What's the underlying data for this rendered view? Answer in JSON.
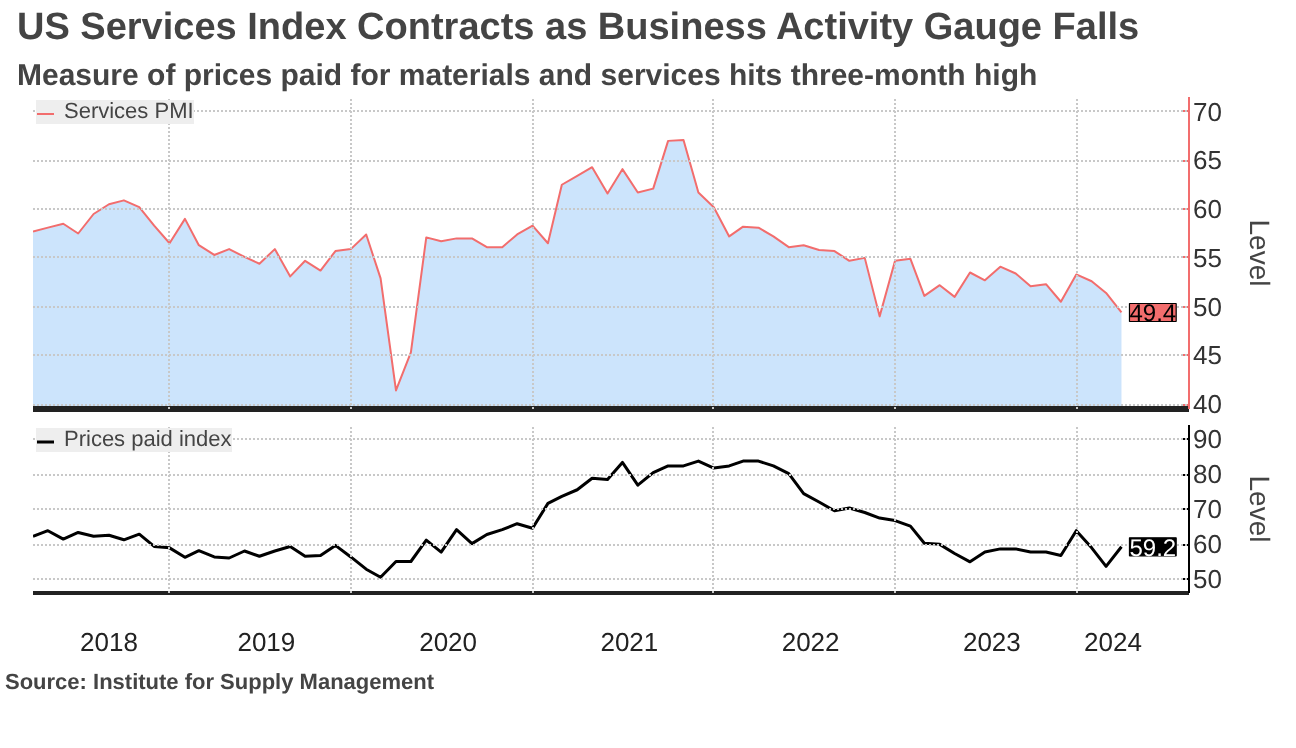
{
  "chart_data": [
    {
      "type": "area",
      "title": "US Services Index Contracts as Business Activity Gauge Falls",
      "subtitle": "Measure of prices paid for materials and services hits three-month high",
      "ylabel": "Level",
      "x": [
        "2018-04",
        "2018-05",
        "2018-06",
        "2018-07",
        "2018-08",
        "2018-09",
        "2018-10",
        "2018-11",
        "2018-12",
        "2019-01",
        "2019-02",
        "2019-03",
        "2019-04",
        "2019-05",
        "2019-06",
        "2019-07",
        "2019-08",
        "2019-09",
        "2019-10",
        "2019-11",
        "2019-12",
        "2020-01",
        "2020-02",
        "2020-03",
        "2020-04",
        "2020-05",
        "2020-06",
        "2020-07",
        "2020-08",
        "2020-09",
        "2020-10",
        "2020-11",
        "2020-12",
        "2021-01",
        "2021-02",
        "2021-03",
        "2021-04",
        "2021-05",
        "2021-06",
        "2021-07",
        "2021-08",
        "2021-09",
        "2021-10",
        "2021-11",
        "2021-12",
        "2022-01",
        "2022-02",
        "2022-03",
        "2022-04",
        "2022-05",
        "2022-06",
        "2022-07",
        "2022-08",
        "2022-09",
        "2022-10",
        "2022-11",
        "2022-12",
        "2023-01",
        "2023-02",
        "2023-03",
        "2023-04",
        "2023-05",
        "2023-06",
        "2023-07",
        "2023-08",
        "2023-09",
        "2023-10",
        "2023-11",
        "2023-12",
        "2024-01",
        "2024-02",
        "2024-03",
        "2024-04"
      ],
      "series": [
        {
          "type": "area",
          "color": "#cce4fc",
          "values": [
            57.7,
            58.1,
            58.5,
            57.5,
            59.5,
            60.5,
            60.9,
            60.2,
            58.3,
            56.5,
            59.0,
            56.3,
            55.3,
            55.9,
            55.1,
            54.4,
            55.9,
            53.1,
            54.7,
            53.7,
            55.7,
            55.9,
            57.4,
            52.9,
            41.4,
            45.3,
            57.1,
            56.7,
            57.0,
            57.0,
            56.1,
            56.1,
            57.4,
            58.3,
            56.5,
            62.5,
            63.4,
            64.3,
            61.6,
            64.1,
            61.7,
            62.1,
            67.0,
            67.1,
            61.7,
            60.2,
            57.2,
            58.2,
            58.1,
            57.2,
            56.1,
            56.3,
            55.8,
            55.7,
            54.7,
            55.0,
            49.0,
            54.7,
            54.9,
            51.1,
            52.2,
            51.0,
            53.5,
            52.7,
            54.1,
            53.4,
            52.1,
            52.3,
            50.5,
            53.3,
            52.6,
            51.4,
            49.4
          ]
        },
        {
          "type": "line",
          "name": "Services PMI",
          "color": "#f26d6d",
          "values": [
            57.7,
            58.1,
            58.5,
            57.5,
            59.5,
            60.5,
            60.9,
            60.2,
            58.3,
            56.5,
            59.0,
            56.3,
            55.3,
            55.9,
            55.1,
            54.4,
            55.9,
            53.1,
            54.7,
            53.7,
            55.7,
            55.9,
            57.4,
            52.9,
            41.4,
            45.3,
            57.1,
            56.7,
            57.0,
            57.0,
            56.1,
            56.1,
            57.4,
            58.3,
            56.5,
            62.5,
            63.4,
            64.3,
            61.6,
            64.1,
            61.7,
            62.1,
            67.0,
            67.1,
            61.7,
            60.2,
            57.2,
            58.2,
            58.1,
            57.2,
            56.1,
            56.3,
            55.8,
            55.7,
            54.7,
            55.0,
            49.0,
            54.7,
            54.9,
            51.1,
            52.2,
            51.0,
            53.5,
            52.7,
            54.1,
            53.4,
            52.1,
            52.3,
            50.5,
            53.3,
            52.6,
            51.4,
            49.4
          ],
          "value_labels": [
            null,
            null,
            null,
            null,
            null,
            null,
            null,
            null,
            null,
            null,
            null,
            null,
            null,
            null,
            null,
            null,
            null,
            null,
            null,
            null,
            null,
            null,
            null,
            null,
            null,
            null,
            null,
            null,
            null,
            null,
            null,
            null,
            null,
            null,
            null,
            null,
            null,
            null,
            null,
            null,
            null,
            null,
            null,
            null,
            null,
            null,
            null,
            null,
            null,
            null,
            null,
            null,
            null,
            null,
            null,
            null,
            null,
            null,
            null,
            null,
            null,
            null,
            null,
            null,
            null,
            null,
            null,
            null,
            null,
            null,
            null,
            null,
            "49.4"
          ]
        }
      ],
      "xlim": [
        "2018-04-01",
        "2024-08-15"
      ],
      "xticks": [
        {
          "value": "2019-01-01",
          "label": null
        },
        {
          "value": "2020-01-01",
          "label": null
        },
        {
          "value": "2021-01-01",
          "label": null
        },
        {
          "value": "2022-01-01",
          "label": null
        },
        {
          "value": "2023-01-01",
          "label": null
        },
        {
          "value": "2024-01-01",
          "label": null
        }
      ],
      "ylim": [
        39.5,
        71.5
      ],
      "yticks": [
        40,
        45,
        50,
        55,
        60,
        65,
        70
      ],
      "grid": true,
      "legend": "top left",
      "tick_labels": "y"
    },
    {
      "type": "line",
      "ylabel": "Level",
      "annotations": [
        "Source: Institute for Supply Management"
      ],
      "x": [
        "2018-04",
        "2018-05",
        "2018-06",
        "2018-07",
        "2018-08",
        "2018-09",
        "2018-10",
        "2018-11",
        "2018-12",
        "2019-01",
        "2019-02",
        "2019-03",
        "2019-04",
        "2019-05",
        "2019-06",
        "2019-07",
        "2019-08",
        "2019-09",
        "2019-10",
        "2019-11",
        "2019-12",
        "2020-01",
        "2020-02",
        "2020-03",
        "2020-04",
        "2020-05",
        "2020-06",
        "2020-07",
        "2020-08",
        "2020-09",
        "2020-10",
        "2020-11",
        "2020-12",
        "2021-01",
        "2021-02",
        "2021-03",
        "2021-04",
        "2021-05",
        "2021-06",
        "2021-07",
        "2021-08",
        "2021-09",
        "2021-10",
        "2021-11",
        "2021-12",
        "2022-01",
        "2022-02",
        "2022-03",
        "2022-04",
        "2022-05",
        "2022-06",
        "2022-07",
        "2022-08",
        "2022-09",
        "2022-10",
        "2022-11",
        "2022-12",
        "2023-01",
        "2023-02",
        "2023-03",
        "2023-04",
        "2023-05",
        "2023-06",
        "2023-07",
        "2023-08",
        "2023-09",
        "2023-10",
        "2023-11",
        "2023-12",
        "2024-01",
        "2024-02",
        "2024-03",
        "2024-04"
      ],
      "series": [
        {
          "name": "Prices paid index",
          "color": "#000000",
          "values": [
            62.2,
            63.8,
            61.4,
            63.3,
            62.2,
            62.5,
            61.2,
            62.8,
            59.3,
            58.9,
            56.2,
            58.1,
            56.3,
            56.0,
            58.0,
            56.5,
            58.0,
            59.3,
            56.5,
            56.7,
            59.6,
            56.3,
            52.8,
            50.5,
            55.0,
            55.0,
            61.1,
            57.7,
            64.1,
            60.1,
            62.7,
            64.1,
            65.8,
            64.5,
            71.6,
            73.6,
            75.5,
            78.8,
            78.4,
            83.3,
            76.8,
            80.4,
            82.3,
            82.3,
            83.7,
            81.7,
            82.3,
            83.7,
            83.7,
            82.3,
            80.1,
            74.4,
            72.0,
            69.5,
            70.3,
            69.0,
            67.4,
            66.7,
            65.1,
            60.2,
            59.9,
            57.3,
            54.9,
            57.7,
            58.6,
            58.6,
            57.7,
            57.7,
            56.7,
            63.8,
            58.9,
            53.6,
            59.2
          ],
          "value_labels": [
            null,
            null,
            null,
            null,
            null,
            null,
            null,
            null,
            null,
            null,
            null,
            null,
            null,
            null,
            null,
            null,
            null,
            null,
            null,
            null,
            null,
            null,
            null,
            null,
            null,
            null,
            null,
            null,
            null,
            null,
            null,
            null,
            null,
            null,
            null,
            null,
            null,
            null,
            null,
            null,
            null,
            null,
            null,
            null,
            null,
            null,
            null,
            null,
            null,
            null,
            null,
            null,
            null,
            null,
            null,
            null,
            null,
            null,
            null,
            null,
            null,
            null,
            null,
            null,
            null,
            null,
            null,
            null,
            null,
            null,
            null,
            null,
            "59.2"
          ]
        }
      ],
      "xlim": [
        "2018-04-01",
        "2024-08-15"
      ],
      "xticks": [
        {
          "value": "2018-09-01",
          "label": "2018"
        },
        {
          "value": "2019-01-01",
          "label": null
        },
        {
          "value": "2019-07-15",
          "label": "2019"
        },
        {
          "value": "2020-01-01",
          "label": null
        },
        {
          "value": "2020-07-15",
          "label": "2020"
        },
        {
          "value": "2021-01-01",
          "label": null
        },
        {
          "value": "2021-07-15",
          "label": "2021"
        },
        {
          "value": "2022-01-01",
          "label": null
        },
        {
          "value": "2022-07-15",
          "label": "2022"
        },
        {
          "value": "2023-01-01",
          "label": null
        },
        {
          "value": "2023-07-15",
          "label": "2023"
        },
        {
          "value": "2024-01-01",
          "label": null
        },
        {
          "value": "2024-03-15",
          "label": "2024"
        }
      ],
      "ylim": [
        46,
        94
      ],
      "yticks": [
        50,
        60,
        70,
        80,
        90
      ],
      "grid": true,
      "legend": "top left"
    }
  ]
}
